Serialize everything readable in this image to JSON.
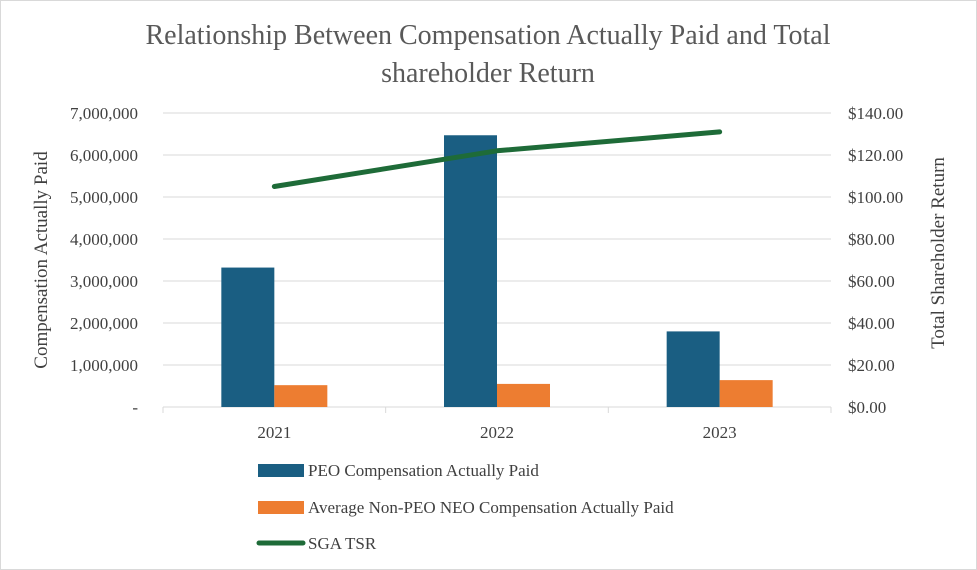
{
  "chart_data": {
    "type": "bar",
    "title_lines": [
      "Relationship Between Compensation Actually Paid and Total",
      "shareholder Return"
    ],
    "categories": [
      "2021",
      "2022",
      "2023"
    ],
    "ylabel": "Compensation Actually Paid",
    "y2label": "Total Shareholder Return",
    "ylim": [
      0,
      7000000
    ],
    "y2lim": [
      0,
      140
    ],
    "y_ticks": [
      "-",
      "1,000,000",
      "2,000,000",
      "3,000,000",
      "4,000,000",
      "5,000,000",
      "6,000,000",
      "7,000,000"
    ],
    "y2_ticks": [
      "$0.00",
      "$20.00",
      "$40.00",
      "$60.00",
      "$80.00",
      "$100.00",
      "$120.00",
      "$140.00"
    ],
    "grid": true,
    "legend_position": "bottom",
    "series": [
      {
        "name": "PEO Compensation Actually Paid",
        "type": "bar",
        "axis": "left",
        "color": "#1a5e82",
        "values": [
          3320000,
          6470000,
          1800000
        ]
      },
      {
        "name": "Average Non-PEO NEO Compensation Actually Paid",
        "type": "bar",
        "axis": "left",
        "color": "#ed7d31",
        "values": [
          520000,
          550000,
          640000
        ]
      },
      {
        "name": "SGA TSR",
        "type": "line",
        "axis": "right",
        "color": "#1e6b38",
        "values": [
          105,
          122,
          131
        ]
      }
    ]
  }
}
